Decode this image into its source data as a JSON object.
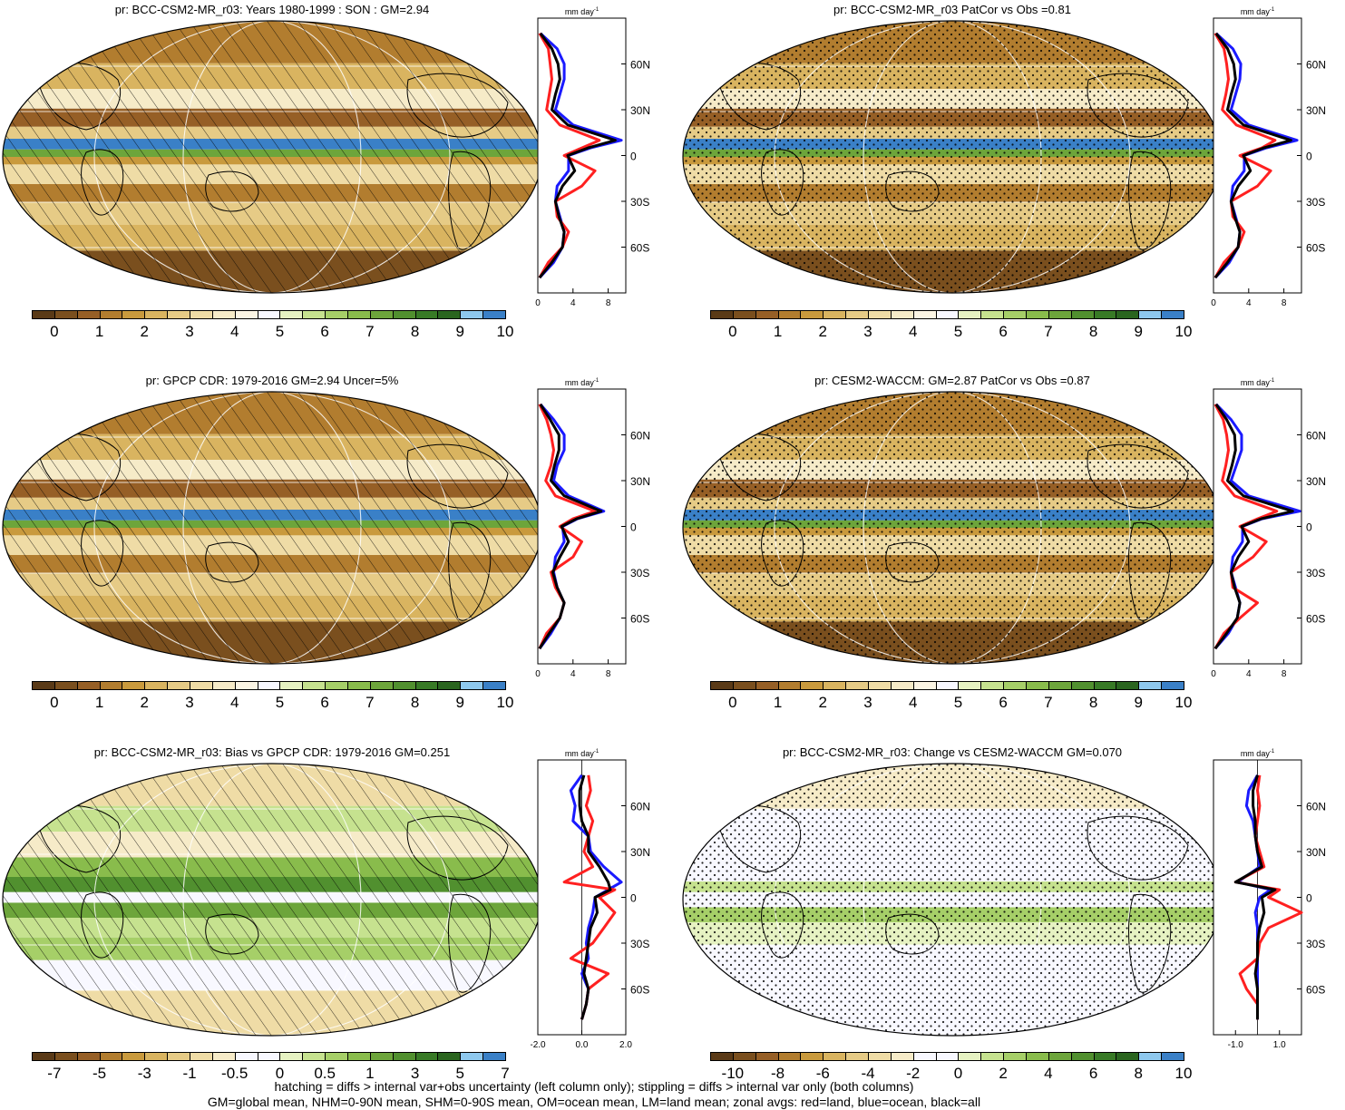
{
  "panels": [
    {
      "id": "p1",
      "title": "pr: BCC-CSM2-MR_r03: Years 1980-1999 : SON : GM=2.94",
      "overlay": "hatch",
      "mapStyle": "clim",
      "colorbar": {
        "colors": [
          "#5a3a17",
          "#7a4f1e",
          "#965f26",
          "#b27d2f",
          "#c99a3d",
          "#d9b460",
          "#e6cb86",
          "#efdca6",
          "#f6ebc8",
          "#fbf5e4",
          "#f8f8ff",
          "#e6f2c2",
          "#c6e28f",
          "#a6cf68",
          "#89bc4c",
          "#6da53b",
          "#51902f",
          "#387a26",
          "#2a651f",
          "#8ec8ee",
          "#3a80c7"
        ],
        "labels": [
          "0",
          "1",
          "2",
          "3",
          "4",
          "5",
          "6",
          "7",
          "8",
          "9",
          "10"
        ]
      },
      "zonal": {
        "xticks": [
          "0",
          "4",
          "8"
        ],
        "xlim": [
          0,
          10
        ],
        "units": "mm day",
        "units_sup": "-1",
        "ylabels": [
          "60N",
          "30N",
          "0",
          "30S",
          "60S"
        ]
      }
    },
    {
      "id": "p2",
      "title": "pr: BCC-CSM2-MR_r03 PatCor vs Obs =0.81",
      "overlay": "stipple",
      "mapStyle": "clim",
      "colorbar": {
        "colors": [
          "#5a3a17",
          "#7a4f1e",
          "#965f26",
          "#b27d2f",
          "#c99a3d",
          "#d9b460",
          "#e6cb86",
          "#efdca6",
          "#f6ebc8",
          "#fbf5e4",
          "#f8f8ff",
          "#e6f2c2",
          "#c6e28f",
          "#a6cf68",
          "#89bc4c",
          "#6da53b",
          "#51902f",
          "#387a26",
          "#2a651f",
          "#8ec8ee",
          "#3a80c7"
        ],
        "labels": [
          "0",
          "1",
          "2",
          "3",
          "4",
          "5",
          "6",
          "7",
          "8",
          "9",
          "10"
        ]
      },
      "zonal": {
        "xticks": [
          "0",
          "4",
          "8"
        ],
        "xlim": [
          0,
          10
        ],
        "units": "mm day",
        "units_sup": "-1",
        "ylabels": [
          "60N",
          "30N",
          "0",
          "30S",
          "60S"
        ]
      }
    },
    {
      "id": "p3",
      "title": "pr: GPCP CDR: 1979-2016 GM=2.94 Uncer=5%",
      "overlay": "hatch",
      "mapStyle": "clim",
      "colorbar": {
        "colors": [
          "#5a3a17",
          "#7a4f1e",
          "#965f26",
          "#b27d2f",
          "#c99a3d",
          "#d9b460",
          "#e6cb86",
          "#efdca6",
          "#f6ebc8",
          "#fbf5e4",
          "#f8f8ff",
          "#e6f2c2",
          "#c6e28f",
          "#a6cf68",
          "#89bc4c",
          "#6da53b",
          "#51902f",
          "#387a26",
          "#2a651f",
          "#8ec8ee",
          "#3a80c7"
        ],
        "labels": [
          "0",
          "1",
          "2",
          "3",
          "4",
          "5",
          "6",
          "7",
          "8",
          "9",
          "10"
        ]
      },
      "zonal": {
        "xticks": [
          "0",
          "4",
          "8"
        ],
        "xlim": [
          0,
          10
        ],
        "units": "mm day",
        "units_sup": "-1",
        "ylabels": [
          "60N",
          "30N",
          "0",
          "30S",
          "60S"
        ]
      }
    },
    {
      "id": "p4",
      "title": "pr: CESM2-WACCM: GM=2.87 PatCor vs Obs =0.87",
      "overlay": "stipple",
      "mapStyle": "clim",
      "colorbar": {
        "colors": [
          "#5a3a17",
          "#7a4f1e",
          "#965f26",
          "#b27d2f",
          "#c99a3d",
          "#d9b460",
          "#e6cb86",
          "#efdca6",
          "#f6ebc8",
          "#fbf5e4",
          "#f8f8ff",
          "#e6f2c2",
          "#c6e28f",
          "#a6cf68",
          "#89bc4c",
          "#6da53b",
          "#51902f",
          "#387a26",
          "#2a651f",
          "#8ec8ee",
          "#3a80c7"
        ],
        "labels": [
          "0",
          "1",
          "2",
          "3",
          "4",
          "5",
          "6",
          "7",
          "8",
          "9",
          "10"
        ]
      },
      "zonal": {
        "xticks": [
          "0",
          "4",
          "8"
        ],
        "xlim": [
          0,
          10
        ],
        "units": "mm day",
        "units_sup": "-1",
        "ylabels": [
          "60N",
          "30N",
          "0",
          "30S",
          "60S"
        ]
      }
    },
    {
      "id": "p5",
      "title": "pr: BCC-CSM2-MR_r03: Bias vs GPCP CDR: 1979-2016  GM=0.251",
      "overlay": "hatch",
      "mapStyle": "bias",
      "colorbar": {
        "colors": [
          "#5a3a17",
          "#7a4f1e",
          "#965f26",
          "#b27d2f",
          "#c99a3d",
          "#d9b460",
          "#e6cb86",
          "#efdca6",
          "#f6ebc8",
          "#f8f8ff",
          "#f8f8ff",
          "#e6f2c2",
          "#c6e28f",
          "#a6cf68",
          "#89bc4c",
          "#6da53b",
          "#51902f",
          "#387a26",
          "#2a651f",
          "#8ec8ee",
          "#3a80c7"
        ],
        "labels": [
          "-7",
          "-5",
          "-3",
          "-1",
          "-0.5",
          "0",
          "0.5",
          "1",
          "3",
          "5",
          "7"
        ]
      },
      "zonal": {
        "xticks": [
          "-2.0",
          "0.0",
          "2.0"
        ],
        "xlim": [
          -2,
          2
        ],
        "units": "mm day",
        "units_sup": "-1",
        "ylabels": [
          "60N",
          "30N",
          "0",
          "30S",
          "60S"
        ]
      }
    },
    {
      "id": "p6",
      "title": "pr: BCC-CSM2-MR_r03: Change vs CESM2-WACCM GM=0.070",
      "overlay": "stipple",
      "mapStyle": "change",
      "colorbar": {
        "colors": [
          "#5a3a17",
          "#7a4f1e",
          "#965f26",
          "#b27d2f",
          "#c99a3d",
          "#d9b460",
          "#e6cb86",
          "#efdca6",
          "#f6ebc8",
          "#f8f8ff",
          "#f8f8ff",
          "#e6f2c2",
          "#c6e28f",
          "#a6cf68",
          "#89bc4c",
          "#6da53b",
          "#51902f",
          "#387a26",
          "#2a651f",
          "#8ec8ee",
          "#3a80c7"
        ],
        "labels": [
          "-10",
          "-8",
          "-6",
          "-4",
          "-2",
          "0",
          "2",
          "4",
          "6",
          "8",
          "10"
        ]
      },
      "zonal": {
        "xticks": [
          "-1.0",
          "1.0"
        ],
        "xlim": [
          -2,
          2
        ],
        "units": "mm day",
        "units_sup": "-1",
        "ylabels": [
          "60N",
          "30N",
          "0",
          "30S",
          "60S"
        ]
      }
    }
  ],
  "footnote": {
    "line1": "hatching = diffs > internal var+obs uncertainty (left column only); stippling = diffs > internal var only (both columns)",
    "line2": "GM=global mean, NHM=0-90N mean, SHM=0-90S mean, OM=ocean mean, LM=land mean; zonal avgs: red=land, blue=ocean, black=all"
  },
  "chart_data": [
    {
      "type": "line",
      "title": "",
      "xlabel": "mm day-1",
      "series_colors": {
        "land": "#ff2020",
        "ocean": "#1a1aff",
        "all": "#000000"
      },
      "panels": [
        {
          "panel": "p1",
          "lat": [
            80,
            70,
            60,
            50,
            40,
            30,
            20,
            10,
            5,
            0,
            -10,
            -20,
            -30,
            -40,
            -50,
            -60,
            -70,
            -80
          ],
          "land": [
            0.2,
            1.2,
            1.4,
            1.6,
            1.3,
            1.0,
            2.5,
            7.0,
            5.0,
            3.0,
            6.5,
            5.0,
            2.0,
            2.2,
            3.5,
            2.8,
            1.2,
            0.2
          ],
          "ocean": [
            0.3,
            2.2,
            3.0,
            3.0,
            2.5,
            2.0,
            4.0,
            9.5,
            6.0,
            3.5,
            3.5,
            2.2,
            2.0,
            2.5,
            3.0,
            2.8,
            1.8,
            0.2
          ],
          "all": [
            0.3,
            1.6,
            2.3,
            2.5,
            2.0,
            1.6,
            3.4,
            8.8,
            5.7,
            3.4,
            4.2,
            2.8,
            2.0,
            2.4,
            3.0,
            2.8,
            1.6,
            0.2
          ]
        },
        {
          "panel": "p2",
          "lat": [
            80,
            70,
            60,
            50,
            40,
            30,
            20,
            10,
            5,
            0,
            -10,
            -20,
            -30,
            -40,
            -50,
            -60,
            -70,
            -80
          ],
          "land": [
            0.2,
            1.2,
            1.5,
            1.7,
            1.4,
            1.0,
            2.6,
            7.0,
            5.5,
            3.0,
            6.5,
            5.0,
            2.0,
            2.2,
            3.5,
            2.8,
            1.2,
            0.2
          ],
          "ocean": [
            0.3,
            2.2,
            3.1,
            3.0,
            2.5,
            2.0,
            4.0,
            9.5,
            6.0,
            3.5,
            3.5,
            2.2,
            2.0,
            2.5,
            3.0,
            2.8,
            1.8,
            0.2
          ],
          "all": [
            0.3,
            1.6,
            2.3,
            2.5,
            2.0,
            1.6,
            3.4,
            8.8,
            5.7,
            3.4,
            4.2,
            2.8,
            2.0,
            2.4,
            3.0,
            2.8,
            1.6,
            0.2
          ]
        },
        {
          "panel": "p3",
          "lat": [
            80,
            70,
            60,
            50,
            40,
            30,
            20,
            10,
            5,
            0,
            -10,
            -20,
            -30,
            -40,
            -50,
            -60,
            -70,
            -80
          ],
          "land": [
            0.2,
            1.0,
            1.5,
            1.8,
            1.5,
            0.9,
            2.0,
            6.5,
            4.0,
            2.5,
            5.0,
            4.0,
            1.5,
            2.0,
            3.0,
            2.5,
            1.0,
            0.2
          ],
          "ocean": [
            0.3,
            1.8,
            3.0,
            3.0,
            2.2,
            1.8,
            3.5,
            7.5,
            4.5,
            2.8,
            3.0,
            2.0,
            1.8,
            2.2,
            3.0,
            2.5,
            1.5,
            0.2
          ],
          "all": [
            0.3,
            1.4,
            2.4,
            2.4,
            1.9,
            1.5,
            3.0,
            7.2,
            4.4,
            2.7,
            3.5,
            2.5,
            1.7,
            2.2,
            3.0,
            2.5,
            1.3,
            0.2
          ]
        },
        {
          "panel": "p4",
          "lat": [
            80,
            70,
            60,
            50,
            40,
            30,
            20,
            10,
            5,
            0,
            -10,
            -20,
            -30,
            -40,
            -50,
            -60,
            -70,
            -80
          ],
          "land": [
            0.2,
            1.1,
            1.5,
            1.7,
            1.4,
            1.0,
            2.4,
            7.2,
            5.0,
            3.0,
            6.0,
            4.5,
            2.0,
            2.2,
            5.0,
            3.0,
            1.2,
            0.2
          ],
          "ocean": [
            0.3,
            2.0,
            3.2,
            3.2,
            2.6,
            2.0,
            4.0,
            9.8,
            5.5,
            3.3,
            3.3,
            2.2,
            2.0,
            2.5,
            3.0,
            2.7,
            1.7,
            0.2
          ],
          "all": [
            0.3,
            1.5,
            2.4,
            2.5,
            2.1,
            1.6,
            3.4,
            9.0,
            5.4,
            3.2,
            4.0,
            2.8,
            2.0,
            2.4,
            3.0,
            2.7,
            1.5,
            0.2
          ]
        },
        {
          "panel": "p5",
          "lat": [
            80,
            70,
            60,
            50,
            40,
            30,
            20,
            10,
            5,
            0,
            -10,
            -20,
            -30,
            -40,
            -50,
            -60,
            -70,
            -80
          ],
          "land": [
            0.3,
            0.4,
            0.2,
            0.5,
            0.3,
            0.1,
            0.5,
            -0.8,
            1.5,
            0.8,
            1.5,
            1.0,
            0.5,
            -0.5,
            1.2,
            0.3,
            0.2,
            0.0
          ],
          "ocean": [
            0.0,
            -0.5,
            -0.3,
            -0.4,
            0.3,
            0.4,
            1.0,
            1.8,
            1.2,
            0.6,
            0.5,
            0.3,
            0.2,
            0.3,
            0.0,
            0.3,
            0.2,
            0.0
          ],
          "all": [
            0.1,
            -0.1,
            -0.1,
            0.0,
            0.3,
            0.3,
            0.8,
            1.2,
            1.3,
            0.6,
            0.7,
            0.4,
            0.3,
            0.2,
            0.1,
            0.3,
            0.2,
            0.0
          ]
        },
        {
          "panel": "p6",
          "lat": [
            80,
            70,
            60,
            50,
            40,
            30,
            20,
            10,
            5,
            0,
            -10,
            -20,
            -30,
            -40,
            -50,
            -60,
            -70,
            -80
          ],
          "land": [
            0.1,
            0.0,
            0.1,
            0.0,
            -0.1,
            0.1,
            0.3,
            -1.0,
            1.0,
            0.5,
            2.0,
            0.5,
            0.1,
            0.0,
            -0.8,
            -0.5,
            0.0,
            0.0
          ],
          "ocean": [
            0.0,
            -0.4,
            -0.5,
            -0.2,
            -0.1,
            0.0,
            0.1,
            -0.9,
            0.6,
            0.1,
            -0.1,
            0.0,
            0.0,
            0.0,
            0.0,
            0.0,
            0.0,
            0.0
          ],
          "all": [
            0.0,
            -0.2,
            -0.2,
            -0.1,
            -0.1,
            0.0,
            0.2,
            -1.0,
            0.8,
            0.2,
            0.3,
            0.1,
            0.0,
            0.0,
            -0.1,
            0.0,
            0.0,
            0.0
          ]
        }
      ]
    }
  ]
}
